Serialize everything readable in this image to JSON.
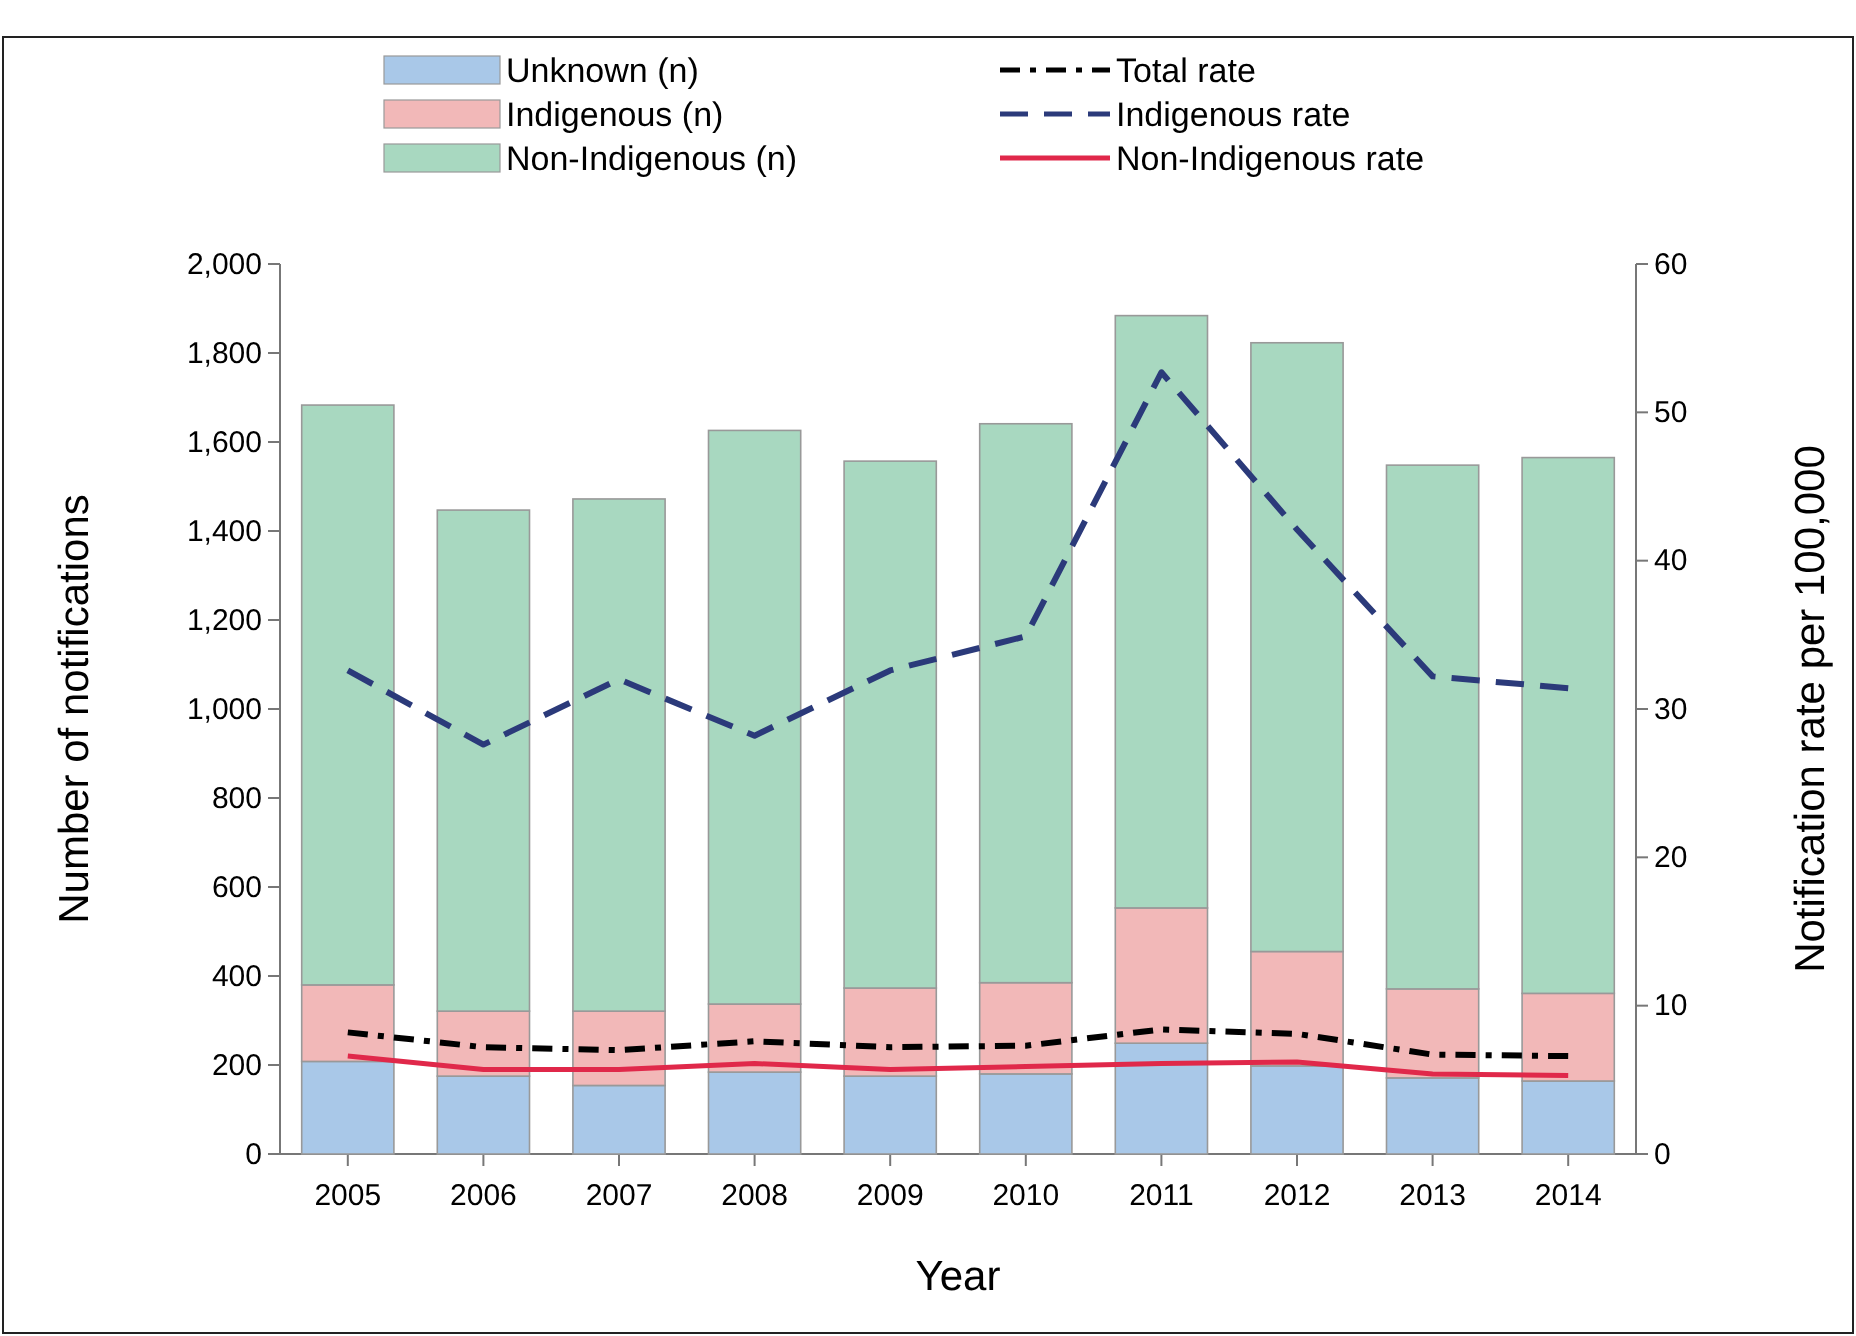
{
  "chart_data": {
    "type": "bar",
    "stacked": true,
    "xlabel": "Year",
    "ylabel": "Number of notifications",
    "y2label": "Notification rate per 100,000",
    "categories": [
      "2005",
      "2006",
      "2007",
      "2008",
      "2009",
      "2010",
      "2011",
      "2012",
      "2013",
      "2014"
    ],
    "series": [
      {
        "name": "Unknown (n)",
        "color": "#a9c8e8",
        "values": [
          208,
          175,
          154,
          184,
          175,
          180,
          249,
          198,
          171,
          164
        ]
      },
      {
        "name": "Indigenous (n)",
        "color": "#f2b8b8",
        "values": [
          172,
          146,
          167,
          153,
          198,
          205,
          304,
          257,
          200,
          197
        ]
      },
      {
        "name": "Non-Indigenous (n)",
        "color": "#a8d8c0",
        "values": [
          1303,
          1126,
          1151,
          1289,
          1184,
          1256,
          1331,
          1368,
          1177,
          1204
        ]
      },
      {
        "name": "Total rate",
        "type": "line",
        "axis": "y2",
        "color": "#000000",
        "line_style": "dashdot",
        "values": [
          8.2,
          7.2,
          7.0,
          7.6,
          7.2,
          7.3,
          8.4,
          8.1,
          6.7,
          6.6
        ]
      },
      {
        "name": "Indigenous rate",
        "type": "line",
        "axis": "y2",
        "color": "#2b3a7a",
        "line_style": "dashed",
        "values": [
          32.6,
          27.6,
          32.0,
          28.2,
          32.6,
          34.9,
          52.7,
          42.1,
          32.2,
          31.4
        ]
      },
      {
        "name": "Non-Indigenous rate",
        "type": "line",
        "axis": "y2",
        "color": "#e0284a",
        "line_style": "solid",
        "values": [
          6.6,
          5.7,
          5.7,
          6.1,
          5.7,
          5.9,
          6.1,
          6.2,
          5.4,
          5.3
        ]
      }
    ],
    "ylim": [
      0,
      2000
    ],
    "yticks": [
      {
        "value": 0,
        "label": "0"
      },
      {
        "value": 200,
        "label": "200"
      },
      {
        "value": 400,
        "label": "400"
      },
      {
        "value": 600,
        "label": "600"
      },
      {
        "value": 800,
        "label": "800"
      },
      {
        "value": 1000,
        "label": "1,000"
      },
      {
        "value": 1200,
        "label": "1,200"
      },
      {
        "value": 1400,
        "label": "1,400"
      },
      {
        "value": 1600,
        "label": "1,600"
      },
      {
        "value": 1800,
        "label": "1,800"
      },
      {
        "value": 2000,
        "label": "2,000"
      }
    ],
    "y2lim": [
      0,
      60
    ],
    "y2ticks": [
      0,
      10,
      20,
      30,
      40,
      50,
      60
    ],
    "grid": false,
    "legend": "top",
    "marker": "none"
  }
}
